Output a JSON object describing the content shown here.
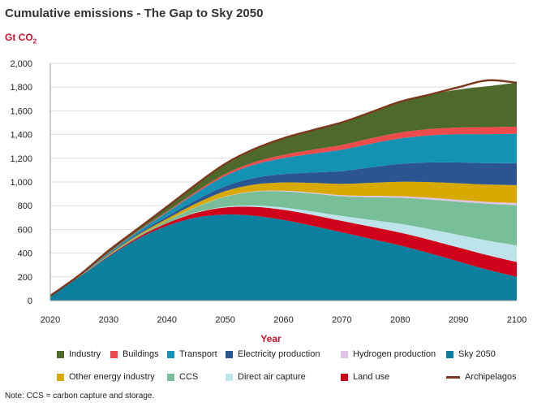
{
  "title": "Cumulative emissions - The Gap to Sky 2050",
  "unit_main": "Gt CO",
  "unit_sub": "2",
  "note": "Note: CCS = carbon capture and storage.",
  "chart_data": {
    "type": "area",
    "title": "Cumulative emissions - The Gap to Sky 2050",
    "xlabel": "Year",
    "ylabel": "Gt CO2",
    "xlim": [
      2020,
      2100
    ],
    "ylim": [
      0,
      2000
    ],
    "yticks": [
      0,
      200,
      400,
      600,
      800,
      1000,
      1200,
      1400,
      1600,
      1800,
      2000
    ],
    "ytick_labels": [
      "0",
      "200",
      "400",
      "600",
      "800",
      "1,000",
      "1,200",
      "1,400",
      "1,600",
      "1,800",
      "2,000"
    ],
    "xticks": [
      2020,
      2030,
      2040,
      2050,
      2060,
      2070,
      2080,
      2090,
      2100
    ],
    "x": [
      2020,
      2025,
      2030,
      2035,
      2040,
      2045,
      2050,
      2055,
      2060,
      2065,
      2070,
      2075,
      2080,
      2085,
      2090,
      2095,
      2100
    ],
    "grid": true,
    "legend_position": "bottom",
    "series": [
      {
        "name": "Sky 2050",
        "color": "#0a7f9e",
        "values": [
          40,
          200,
          370,
          520,
          630,
          700,
          725,
          715,
          680,
          630,
          575,
          520,
          465,
          400,
          330,
          260,
          200
        ]
      },
      {
        "name": "Land use",
        "color": "#d0021b",
        "values": [
          0,
          2,
          6,
          12,
          22,
          40,
          60,
          75,
          85,
          92,
          97,
          103,
          108,
          113,
          118,
          123,
          125
        ]
      },
      {
        "name": "Direct air capture",
        "color": "#bde4ea",
        "values": [
          0,
          0,
          0,
          0,
          0,
          3,
          6,
          12,
          20,
          30,
          42,
          58,
          74,
          90,
          106,
          123,
          140
        ]
      },
      {
        "name": "CCS",
        "color": "#78be98",
        "values": [
          0,
          1,
          4,
          10,
          20,
          45,
          85,
          115,
          135,
          150,
          165,
          190,
          220,
          250,
          280,
          310,
          340
        ]
      },
      {
        "name": "Hydrogen production",
        "color": "#dfc3e4",
        "values": [
          0,
          0,
          0,
          0,
          0,
          1,
          2,
          4,
          6,
          8,
          10,
          12,
          13,
          14,
          15,
          16,
          17
        ]
      },
      {
        "name": "Other energy industry",
        "color": "#d8a900",
        "values": [
          0,
          2,
          5,
          10,
          18,
          30,
          45,
          58,
          70,
          82,
          95,
          110,
          122,
          132,
          140,
          146,
          152
        ]
      },
      {
        "name": "Electricity production",
        "color": "#2b5591",
        "values": [
          0,
          2,
          5,
          10,
          18,
          28,
          40,
          55,
          70,
          88,
          108,
          130,
          150,
          165,
          175,
          180,
          183
        ]
      },
      {
        "name": "Transport",
        "color": "#1492b4",
        "values": [
          0,
          4,
          10,
          20,
          35,
          60,
          88,
          112,
          135,
          158,
          180,
          200,
          215,
          228,
          238,
          245,
          250
        ]
      },
      {
        "name": "Buildings",
        "color": "#ee4c4c",
        "values": [
          0,
          1,
          3,
          5,
          8,
          12,
          17,
          22,
          28,
          34,
          40,
          45,
          50,
          54,
          57,
          59,
          60
        ]
      },
      {
        "name": "Industry",
        "color": "#4e6a2b",
        "values": [
          0,
          3,
          8,
          18,
          40,
          60,
          85,
          110,
          140,
          165,
          190,
          220,
          260,
          290,
          320,
          345,
          370
        ]
      }
    ],
    "line_series": {
      "name": "Archipelagos",
      "color": "#7a3a1f",
      "values": [
        40,
        215,
        421,
        605,
        791,
        979,
        1153,
        1278,
        1369,
        1437,
        1502,
        1588,
        1677,
        1736,
        1799,
        1857,
        1837
      ]
    }
  },
  "legend": [
    {
      "label": "Industry",
      "color": "#4e6a2b",
      "kind": "swatch"
    },
    {
      "label": "Buildings",
      "color": "#ee4c4c",
      "kind": "swatch"
    },
    {
      "label": "Transport",
      "color": "#1492b4",
      "kind": "swatch"
    },
    {
      "label": "Electricity production",
      "color": "#2b5591",
      "kind": "swatch"
    },
    {
      "label": "Hydrogen production",
      "color": "#dfc3e4",
      "kind": "swatch"
    },
    {
      "label": "Sky 2050",
      "color": "#0a7f9e",
      "kind": "swatch"
    },
    {
      "label": "Other energy industry",
      "color": "#d8a900",
      "kind": "swatch"
    },
    {
      "label": "CCS",
      "color": "#78be98",
      "kind": "swatch"
    },
    {
      "label": "Direct air capture",
      "color": "#bde4ea",
      "kind": "swatch"
    },
    {
      "label": "Land use",
      "color": "#d0021b",
      "kind": "swatch"
    },
    {
      "label": "Archipelagos",
      "color": "#7a3a1f",
      "kind": "line"
    }
  ]
}
